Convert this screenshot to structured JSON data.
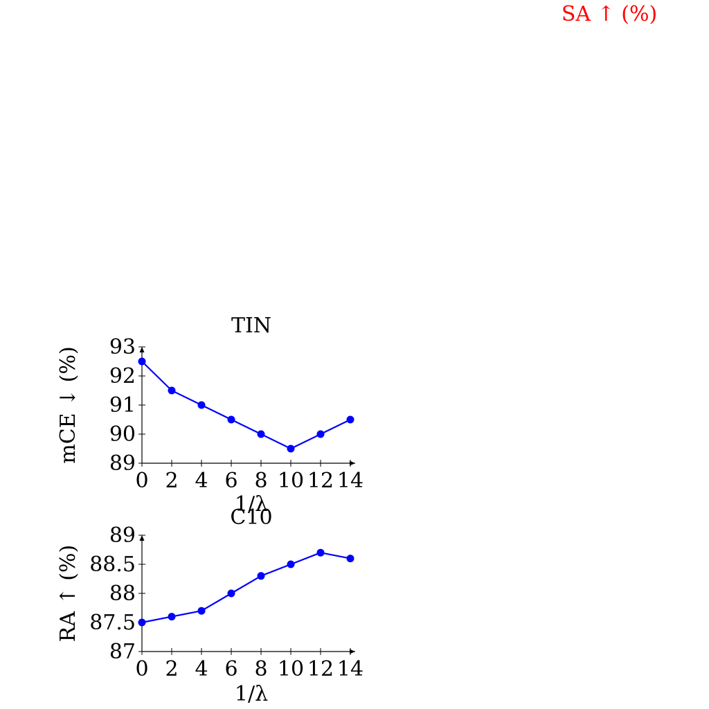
{
  "colors": {
    "series": "#0000ff",
    "axis": "#000000",
    "stray_label": "#ff0000"
  },
  "stray_label": {
    "text": "SA ↑ (%)"
  },
  "chart_data": [
    {
      "type": "line",
      "title": "TIN",
      "xlabel": "1/λ",
      "ylabel": "mCE ↓ (%)",
      "x": [
        0,
        2,
        4,
        6,
        8,
        10,
        12,
        14
      ],
      "xticks": [
        "0",
        "2",
        "4",
        "6",
        "8",
        "10",
        "12",
        "14"
      ],
      "yticks": [
        "89",
        "90",
        "91",
        "92",
        "93"
      ],
      "xlim": [
        0,
        14
      ],
      "ylim": [
        89,
        93
      ],
      "grid": false,
      "series": [
        {
          "values": [
            92.5,
            91.5,
            91.0,
            90.5,
            90.0,
            89.5,
            90.0,
            90.5
          ]
        }
      ]
    },
    {
      "type": "line",
      "title": "C10",
      "xlabel": "1/λ",
      "ylabel": "RA ↑ (%)",
      "x": [
        0,
        2,
        4,
        6,
        8,
        10,
        12,
        14
      ],
      "xticks": [
        "0",
        "2",
        "4",
        "6",
        "8",
        "10",
        "12",
        "14"
      ],
      "yticks": [
        "87",
        "87.5",
        "88",
        "88.5",
        "89"
      ],
      "xlim": [
        0,
        14
      ],
      "ylim": [
        87,
        89
      ],
      "grid": false,
      "series": [
        {
          "values": [
            87.5,
            87.6,
            87.7,
            88.0,
            88.3,
            88.5,
            88.7,
            88.6
          ]
        }
      ]
    }
  ]
}
